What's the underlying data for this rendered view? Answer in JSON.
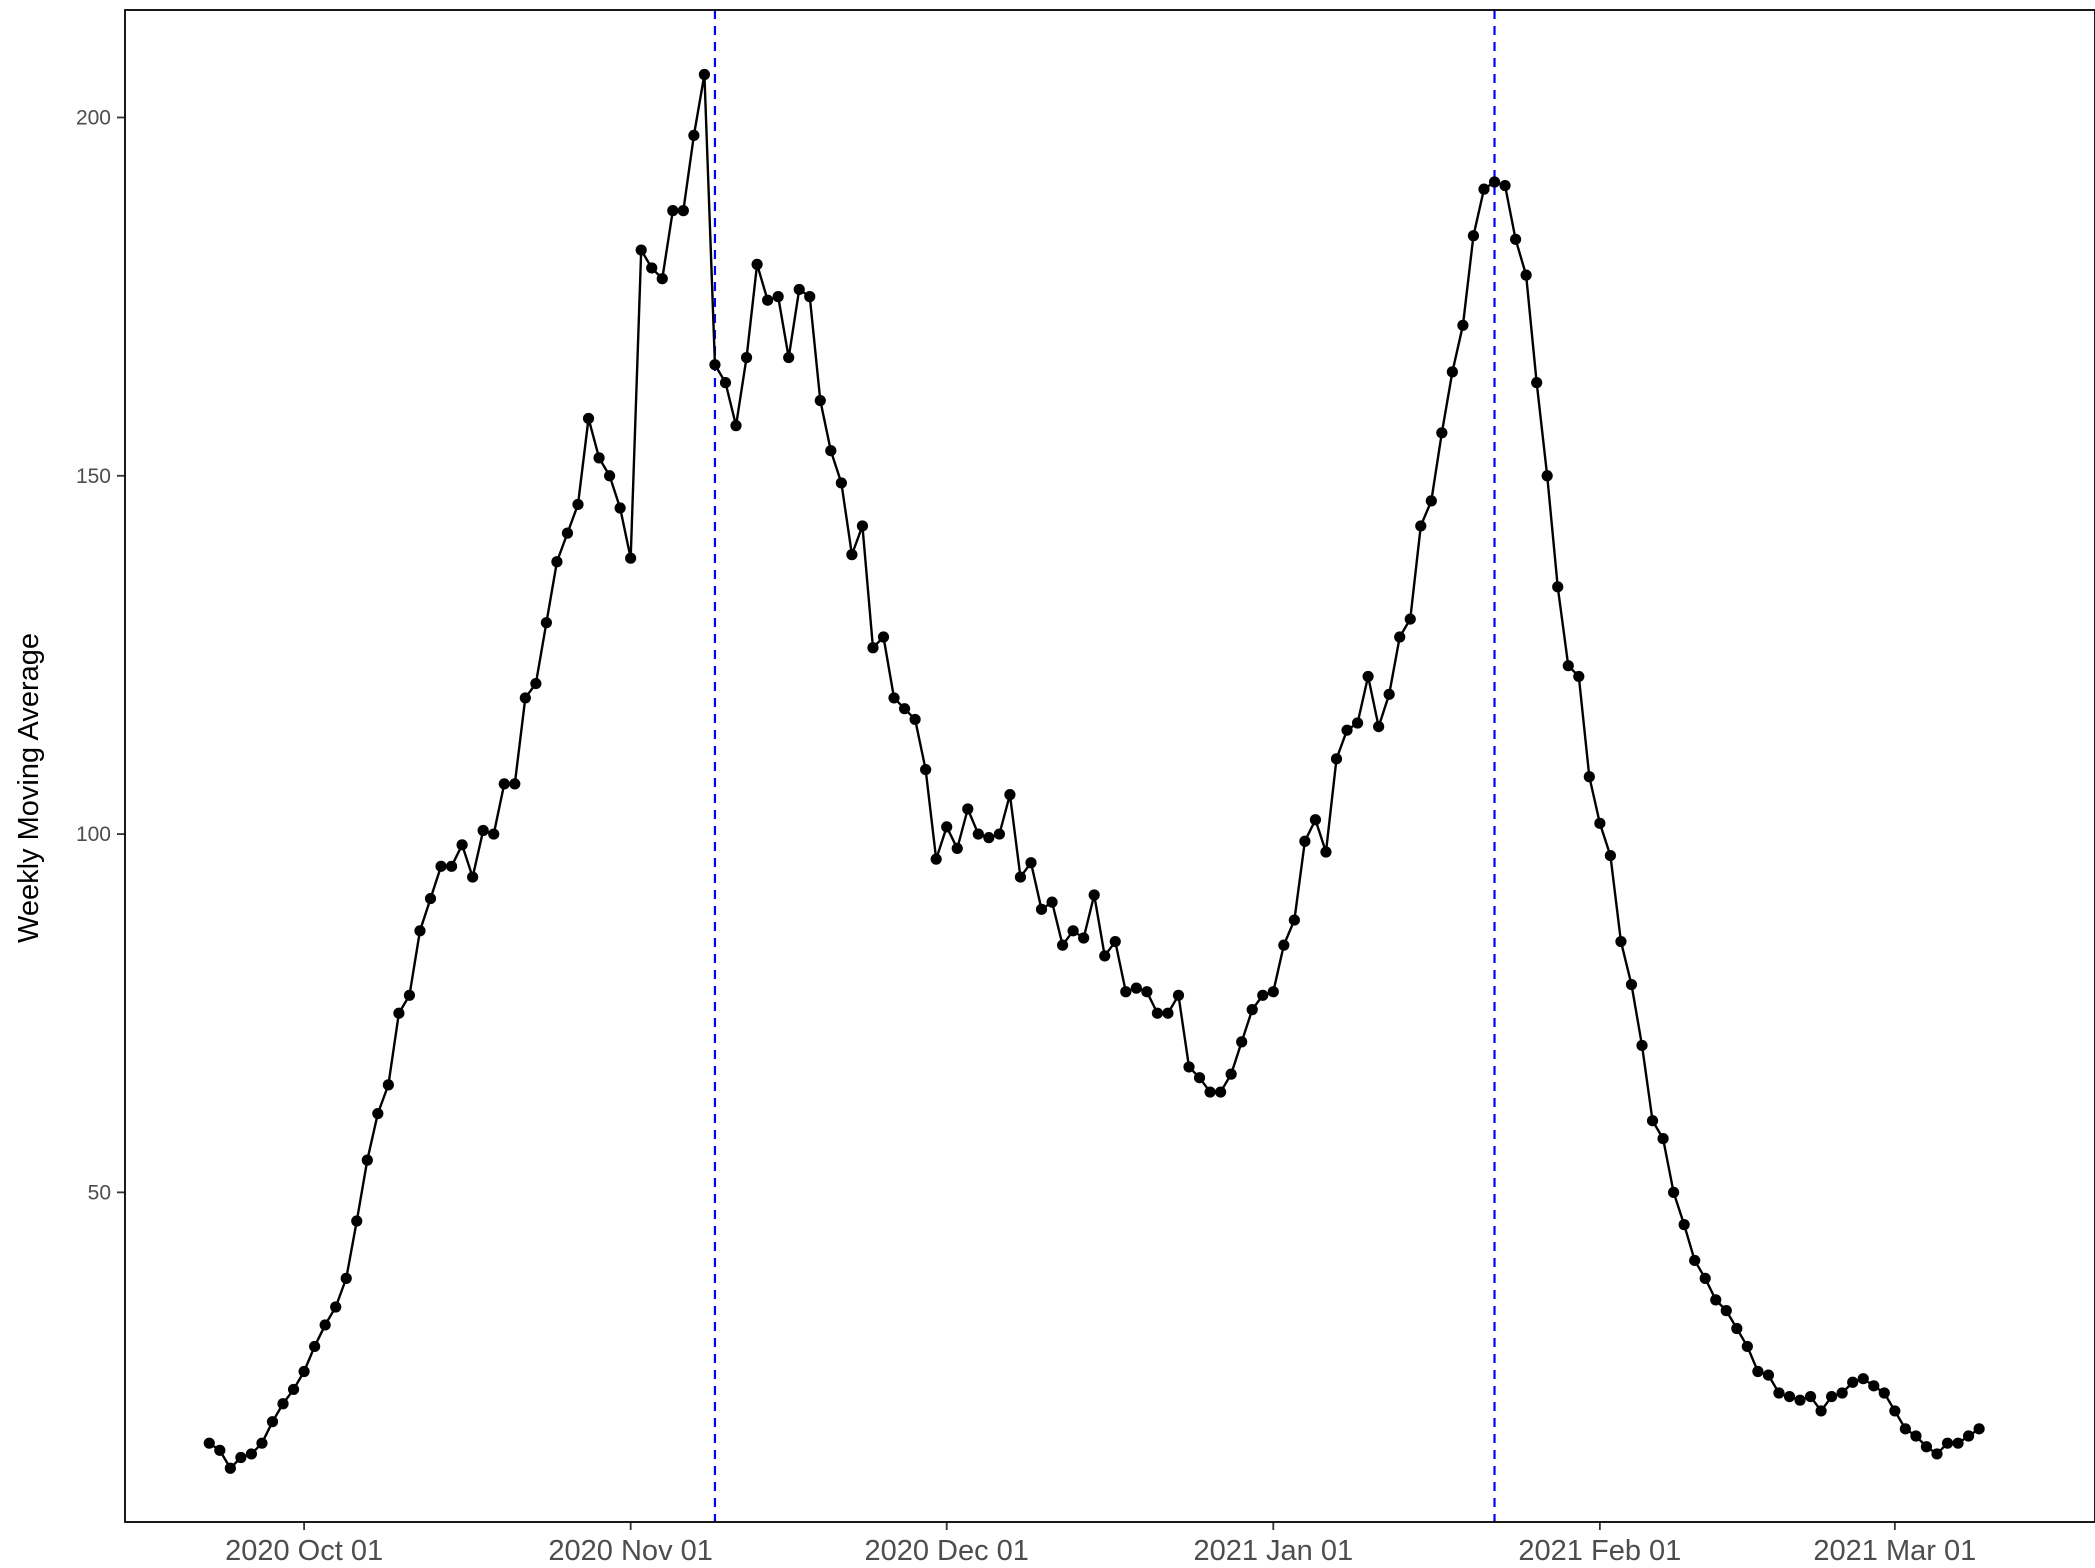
{
  "chart_data": {
    "type": "line",
    "title": "",
    "xlabel": "",
    "ylabel": "Weekly Moving Average",
    "x_start": "2020-09-22",
    "x_step_days": 1,
    "xlim": [
      "2020-09-14",
      "2021-03-20"
    ],
    "ylim": [
      4,
      215
    ],
    "x_ticks": [
      {
        "date": "2020-10-01",
        "label": "2020 Oct 01"
      },
      {
        "date": "2020-11-01",
        "label": "2020 Nov 01"
      },
      {
        "date": "2020-12-01",
        "label": "2020 Dec 01"
      },
      {
        "date": "2021-01-01",
        "label": "2021 Jan 01"
      },
      {
        "date": "2021-02-01",
        "label": "2021 Feb 01"
      },
      {
        "date": "2021-03-01",
        "label": "2021 Mar 01"
      }
    ],
    "y_ticks": [
      {
        "value": 50,
        "label": "50"
      },
      {
        "value": 100,
        "label": "100"
      },
      {
        "value": 150,
        "label": "150"
      },
      {
        "value": 200,
        "label": "200"
      }
    ],
    "reference_lines": [
      {
        "date": "2020-11-09",
        "color": "#0000ff",
        "style": "dashed"
      },
      {
        "date": "2021-01-22",
        "color": "#0000ff",
        "style": "dashed"
      }
    ],
    "grid": false,
    "series": [
      {
        "color": "#000000",
        "values": [
          15,
          14,
          11.5,
          13,
          13.5,
          15,
          18,
          20.5,
          22.5,
          25,
          28.5,
          31.5,
          34,
          38,
          46,
          54.5,
          61,
          65,
          75,
          77.5,
          86.5,
          91,
          95.5,
          95.5,
          98.5,
          94,
          100.5,
          100,
          107,
          107,
          119,
          121,
          129.5,
          138,
          142,
          146,
          158,
          152.5,
          150,
          145.5,
          138.5,
          181.5,
          179,
          177.5,
          187,
          187,
          197.5,
          206,
          165.5,
          163,
          157,
          166.5,
          179.5,
          174.5,
          175,
          166.5,
          176,
          175,
          160.5,
          153.5,
          149,
          139,
          143,
          126,
          127.5,
          119,
          117.5,
          116,
          109,
          96.5,
          101,
          98,
          103.5,
          100,
          99.5,
          100,
          105.5,
          94,
          96,
          89.5,
          90.5,
          84.5,
          86.5,
          85.5,
          91.5,
          83,
          85,
          78,
          78.5,
          78,
          75,
          75,
          77.5,
          67.5,
          66,
          64,
          64,
          66.5,
          71,
          75.5,
          77.5,
          78,
          84.5,
          88,
          99,
          102,
          97.5,
          110.5,
          114.5,
          115.5,
          122,
          115,
          119.5,
          127.5,
          130,
          143,
          146.5,
          156,
          164.5,
          171,
          183.5,
          190,
          191,
          190.5,
          183,
          178,
          163,
          150,
          134.5,
          123.5,
          122,
          108,
          101.5,
          97,
          85,
          79,
          70.5,
          60,
          57.5,
          50,
          45.5,
          40.5,
          38,
          35,
          33.5,
          31,
          28.5,
          25,
          24.5,
          22,
          21.5,
          21,
          21.5,
          19.5,
          21.5,
          22,
          23.5,
          24,
          23,
          22,
          19.5,
          17,
          16,
          14.5,
          13.5,
          15,
          15,
          16,
          17
        ]
      }
    ]
  }
}
